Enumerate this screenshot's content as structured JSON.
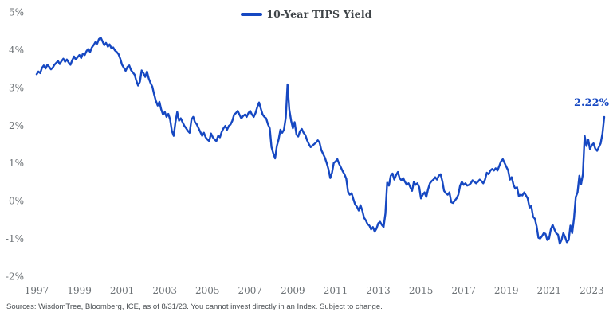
{
  "legend": {
    "label": "10-Year TIPS Yield"
  },
  "annotation": {
    "label": "2.22%"
  },
  "footer": {
    "source": "Sources: WisdomTree, Bloomberg, ICE, as of 8/31/23. You cannot invest directly in an Index. Subject to change."
  },
  "colors": {
    "line": "#1648c2",
    "axis_text": "#6d7276",
    "legend_text": "#3e4347",
    "source_text": "#494e52",
    "background": "#ffffff"
  },
  "chart_data": {
    "type": "line",
    "title": "10-Year TIPS Yield",
    "xlabel": "",
    "ylabel": "",
    "grid": false,
    "legend_position": "top-center",
    "ylim": [
      -2,
      5
    ],
    "y_tick_labels": [
      "5%",
      "4%",
      "3%",
      "2%",
      "1%",
      "0%",
      "-1%",
      "-2%"
    ],
    "x_start_year": 1997,
    "x_end_label": "8/31/23",
    "x_frequency": "monthly",
    "x_tick_labels": [
      "1997",
      "1999",
      "2001",
      "2003",
      "2005",
      "2007",
      "2009",
      "2011",
      "2013",
      "2015",
      "2017",
      "2019",
      "2021",
      "2023"
    ],
    "last_value_annotation": "2.22%",
    "series": [
      {
        "name": "10-Year TIPS Yield",
        "unit": "%",
        "values": [
          3.35,
          3.42,
          3.38,
          3.52,
          3.58,
          3.5,
          3.6,
          3.55,
          3.48,
          3.52,
          3.6,
          3.65,
          3.7,
          3.62,
          3.7,
          3.76,
          3.68,
          3.74,
          3.66,
          3.6,
          3.72,
          3.82,
          3.74,
          3.8,
          3.86,
          3.78,
          3.9,
          3.86,
          3.96,
          4.02,
          3.94,
          4.06,
          4.12,
          4.2,
          4.16,
          4.28,
          4.32,
          4.22,
          4.12,
          4.18,
          4.08,
          4.14,
          4.04,
          4.06,
          3.98,
          3.94,
          3.88,
          3.76,
          3.6,
          3.52,
          3.44,
          3.54,
          3.58,
          3.46,
          3.4,
          3.34,
          3.18,
          3.05,
          3.15,
          3.45,
          3.38,
          3.28,
          3.42,
          3.24,
          3.12,
          3.02,
          2.82,
          2.65,
          2.52,
          2.62,
          2.42,
          2.28,
          2.35,
          2.22,
          2.3,
          2.15,
          1.85,
          1.72,
          2.08,
          2.35,
          2.12,
          2.18,
          2.08,
          1.98,
          1.92,
          1.85,
          1.8,
          2.15,
          2.22,
          2.08,
          2.02,
          1.92,
          1.82,
          1.72,
          1.8,
          1.68,
          1.62,
          1.58,
          1.78,
          1.68,
          1.62,
          1.58,
          1.72,
          1.68,
          1.82,
          1.92,
          1.98,
          1.88,
          1.98,
          2.02,
          2.12,
          2.28,
          2.32,
          2.38,
          2.28,
          2.18,
          2.24,
          2.28,
          2.22,
          2.32,
          2.38,
          2.28,
          2.22,
          2.32,
          2.48,
          2.6,
          2.44,
          2.28,
          2.22,
          2.18,
          2.02,
          1.92,
          1.42,
          1.25,
          1.12,
          1.45,
          1.62,
          1.88,
          1.8,
          1.88,
          2.2,
          3.08,
          2.42,
          2.12,
          1.92,
          2.08,
          1.75,
          1.7,
          1.84,
          1.9,
          1.8,
          1.74,
          1.6,
          1.5,
          1.42,
          1.46,
          1.5,
          1.54,
          1.6,
          1.54,
          1.34,
          1.24,
          1.14,
          1.0,
          0.84,
          0.6,
          0.74,
          1.0,
          1.04,
          1.1,
          0.98,
          0.88,
          0.78,
          0.7,
          0.58,
          0.24,
          0.16,
          0.2,
          0.04,
          -0.1,
          -0.16,
          -0.26,
          -0.12,
          -0.26,
          -0.45,
          -0.52,
          -0.62,
          -0.66,
          -0.76,
          -0.7,
          -0.82,
          -0.74,
          -0.6,
          -0.56,
          -0.64,
          -0.7,
          -0.34,
          0.48,
          0.4,
          0.66,
          0.72,
          0.56,
          0.68,
          0.76,
          0.6,
          0.54,
          0.6,
          0.5,
          0.42,
          0.46,
          0.36,
          0.26,
          0.5,
          0.42,
          0.46,
          0.36,
          0.06,
          0.16,
          0.22,
          0.1,
          0.3,
          0.46,
          0.52,
          0.56,
          0.62,
          0.56,
          0.66,
          0.7,
          0.52,
          0.26,
          0.2,
          0.16,
          0.22,
          -0.04,
          -0.06,
          0.0,
          0.06,
          0.16,
          0.4,
          0.5,
          0.42,
          0.46,
          0.4,
          0.42,
          0.46,
          0.54,
          0.5,
          0.46,
          0.5,
          0.56,
          0.52,
          0.46,
          0.56,
          0.74,
          0.7,
          0.8,
          0.84,
          0.8,
          0.86,
          0.8,
          0.92,
          1.04,
          1.1,
          1.0,
          0.9,
          0.8,
          0.56,
          0.62,
          0.42,
          0.32,
          0.36,
          0.12,
          0.16,
          0.14,
          0.22,
          0.14,
          0.06,
          -0.18,
          -0.14,
          -0.42,
          -0.48,
          -0.68,
          -0.98,
          -1.0,
          -0.94,
          -0.86,
          -0.88,
          -1.04,
          -1.0,
          -0.76,
          -0.64,
          -0.76,
          -0.86,
          -0.9,
          -1.14,
          -1.04,
          -0.86,
          -0.96,
          -1.1,
          -1.04,
          -0.66,
          -0.86,
          -0.46,
          0.1,
          0.22,
          0.66,
          0.44,
          0.7,
          1.72,
          1.45,
          1.62,
          1.37,
          1.47,
          1.52,
          1.38,
          1.32,
          1.42,
          1.52,
          1.78,
          2.22
        ]
      }
    ]
  }
}
